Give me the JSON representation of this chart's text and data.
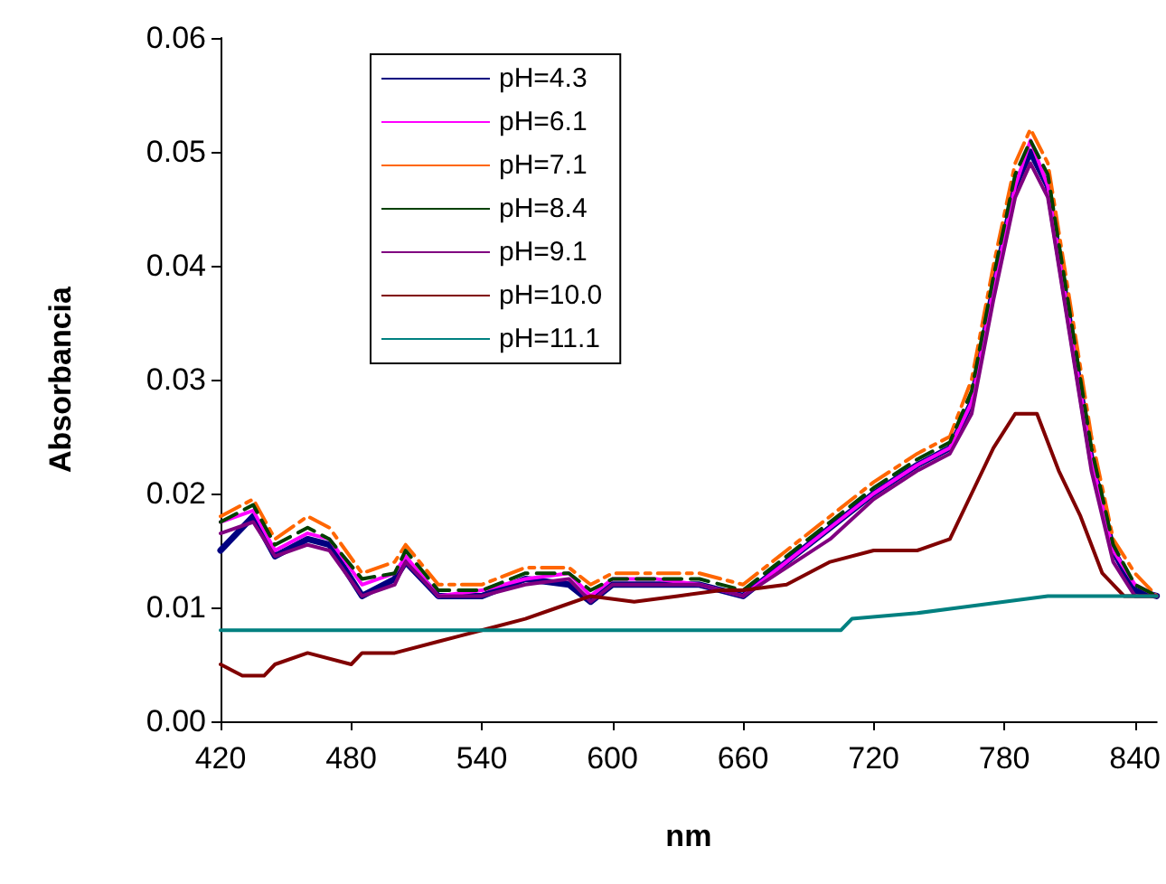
{
  "chart_data": {
    "type": "line",
    "xlabel": "nm",
    "ylabel": "Absorbancia",
    "xlim": [
      420,
      850
    ],
    "xticks": [
      420,
      480,
      540,
      600,
      660,
      720,
      780,
      840
    ],
    "ylim": [
      0,
      0.06
    ],
    "yticks": [
      {
        "value": 0,
        "label": "0.00"
      },
      {
        "value": 0.01,
        "label": "0.01"
      },
      {
        "value": 0.02,
        "label": "0.02"
      },
      {
        "value": 0.03,
        "label": "0.03"
      },
      {
        "value": 0.04,
        "label": "0.04"
      },
      {
        "value": 0.05,
        "label": "0.05"
      },
      {
        "value": 0.06,
        "label": "0.06"
      }
    ],
    "grid": false,
    "legend": "top left",
    "marker": "none",
    "x": [
      420,
      435,
      445,
      460,
      470,
      485,
      500,
      505,
      520,
      540,
      560,
      580,
      590,
      600,
      620,
      640,
      660,
      680,
      700,
      720,
      740,
      755,
      765,
      775,
      785,
      792,
      800,
      810,
      820,
      830,
      840,
      850
    ],
    "series": [
      {
        "name": "pH=4.3",
        "color": "#000080",
        "values": [
          0.015,
          0.018,
          0.0145,
          0.016,
          0.0155,
          0.011,
          0.0125,
          0.014,
          0.011,
          0.011,
          0.0125,
          0.012,
          0.0105,
          0.012,
          0.012,
          0.012,
          0.011,
          0.014,
          0.017,
          0.02,
          0.0225,
          0.024,
          0.028,
          0.038,
          0.047,
          0.05,
          0.047,
          0.035,
          0.023,
          0.015,
          0.0115,
          0.011
        ]
      },
      {
        "name": "pH=6.1",
        "color": "#ff00ff",
        "values": [
          0.0175,
          0.0185,
          0.015,
          0.0165,
          0.016,
          0.012,
          0.013,
          0.0145,
          0.011,
          0.0115,
          0.0125,
          0.013,
          0.011,
          0.0125,
          0.0125,
          0.012,
          0.011,
          0.014,
          0.017,
          0.02,
          0.0225,
          0.024,
          0.028,
          0.038,
          0.047,
          0.051,
          0.047,
          0.035,
          0.023,
          0.015,
          0.012,
          0.011
        ]
      },
      {
        "name": "pH=7.1",
        "color": "#ff6600",
        "line_style": "dashdot",
        "values": [
          0.018,
          0.0195,
          0.016,
          0.018,
          0.017,
          0.013,
          0.014,
          0.0155,
          0.012,
          0.012,
          0.0135,
          0.0135,
          0.012,
          0.013,
          0.013,
          0.013,
          0.012,
          0.015,
          0.018,
          0.021,
          0.0235,
          0.025,
          0.03,
          0.04,
          0.049,
          0.052,
          0.049,
          0.037,
          0.025,
          0.016,
          0.013,
          0.011
        ]
      },
      {
        "name": "pH=8.4",
        "color": "#004000",
        "line_style": "dashed",
        "values": [
          0.0175,
          0.019,
          0.0155,
          0.017,
          0.016,
          0.0125,
          0.013,
          0.015,
          0.0115,
          0.0115,
          0.013,
          0.013,
          0.0115,
          0.0125,
          0.0125,
          0.0125,
          0.0115,
          0.0145,
          0.0175,
          0.0205,
          0.023,
          0.0245,
          0.029,
          0.039,
          0.048,
          0.051,
          0.048,
          0.036,
          0.024,
          0.0155,
          0.012,
          0.011
        ]
      },
      {
        "name": "pH=9.1",
        "color": "#800080",
        "values": [
          0.0165,
          0.0175,
          0.0145,
          0.0155,
          0.015,
          0.011,
          0.012,
          0.014,
          0.011,
          0.011,
          0.012,
          0.0125,
          0.0105,
          0.012,
          0.012,
          0.012,
          0.011,
          0.0135,
          0.016,
          0.0195,
          0.022,
          0.0235,
          0.027,
          0.037,
          0.046,
          0.049,
          0.046,
          0.034,
          0.022,
          0.014,
          0.011,
          0.011
        ]
      },
      {
        "name": "pH=10.0",
        "color": "#800000",
        "x": [
          420,
          430,
          440,
          445,
          460,
          480,
          485,
          500,
          520,
          540,
          560,
          575,
          590,
          610,
          630,
          650,
          660,
          680,
          700,
          720,
          740,
          755,
          765,
          775,
          785,
          795,
          805,
          815,
          825,
          835,
          850
        ],
        "values": [
          0.005,
          0.004,
          0.004,
          0.005,
          0.006,
          0.005,
          0.006,
          0.006,
          0.007,
          0.008,
          0.009,
          0.01,
          0.011,
          0.0105,
          0.011,
          0.0115,
          0.0115,
          0.012,
          0.014,
          0.015,
          0.015,
          0.016,
          0.02,
          0.024,
          0.027,
          0.027,
          0.022,
          0.018,
          0.013,
          0.011,
          0.011
        ]
      },
      {
        "name": "pH=11.1",
        "color": "#008080",
        "x": [
          420,
          500,
          590,
          610,
          705,
          710,
          740,
          760,
          800,
          820,
          850
        ],
        "values": [
          0.008,
          0.008,
          0.008,
          0.008,
          0.008,
          0.009,
          0.0095,
          0.01,
          0.011,
          0.011,
          0.011
        ]
      }
    ]
  }
}
